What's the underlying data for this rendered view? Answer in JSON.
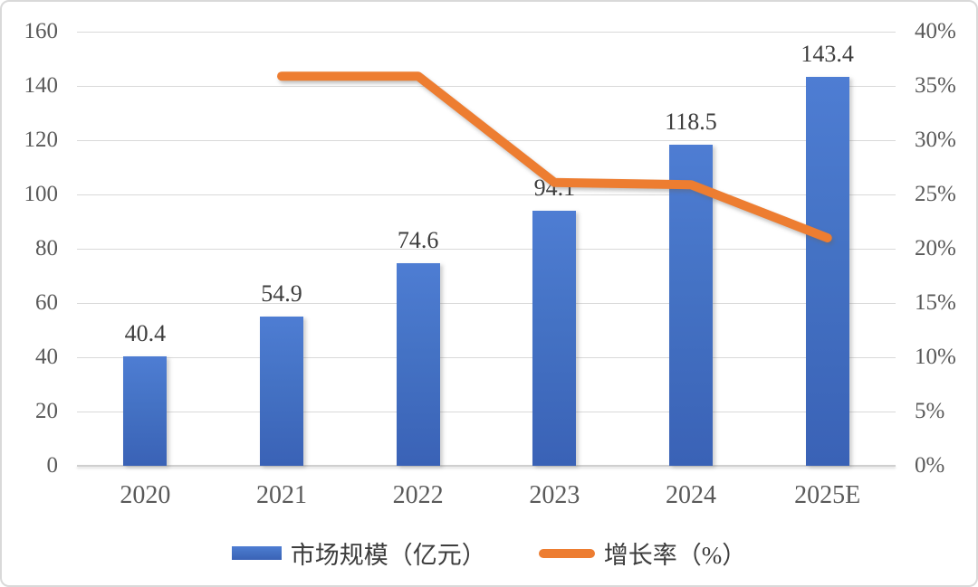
{
  "chart_data": {
    "type": "bar",
    "subtype": "combo-bar-line-dual-axis",
    "categories": [
      "2020",
      "2021",
      "2022",
      "2023",
      "2024",
      "2025E"
    ],
    "series": [
      {
        "name": "市场规模（亿元）",
        "type": "bar",
        "axis": "left",
        "color": "#4472C4",
        "values": [
          40.4,
          54.9,
          74.6,
          94.1,
          118.5,
          143.4
        ],
        "data_labels": [
          "40.4",
          "54.9",
          "74.6",
          "94.1",
          "118.5",
          "143.4"
        ]
      },
      {
        "name": "增长率（%）",
        "type": "line",
        "axis": "right",
        "color": "#ED7D31",
        "values": [
          null,
          35.9,
          35.9,
          26.1,
          25.9,
          21.0
        ]
      }
    ],
    "left_axis": {
      "min": 0,
      "max": 160,
      "step": 20,
      "tick_labels": [
        "0",
        "20",
        "40",
        "60",
        "80",
        "100",
        "120",
        "140",
        "160"
      ]
    },
    "right_axis": {
      "min": 0,
      "max": 40,
      "step": 5,
      "tick_labels": [
        "0%",
        "5%",
        "10%",
        "15%",
        "20%",
        "25%",
        "30%",
        "35%",
        "40%"
      ]
    },
    "title": "",
    "xlabel": "",
    "ylabel": "",
    "grid": true,
    "legend_position": "bottom"
  },
  "colors": {
    "bar_fill": "#4472C4",
    "bar_gradient_top": "#4e7dd3",
    "bar_gradient_bottom": "#3a62b6",
    "line_stroke": "#ED7D31",
    "gridline": "#d9d9d9",
    "axis_text": "#595959",
    "data_label_text": "#3d3d3d",
    "card_border": "#d9d9d9",
    "background": "#ffffff"
  }
}
